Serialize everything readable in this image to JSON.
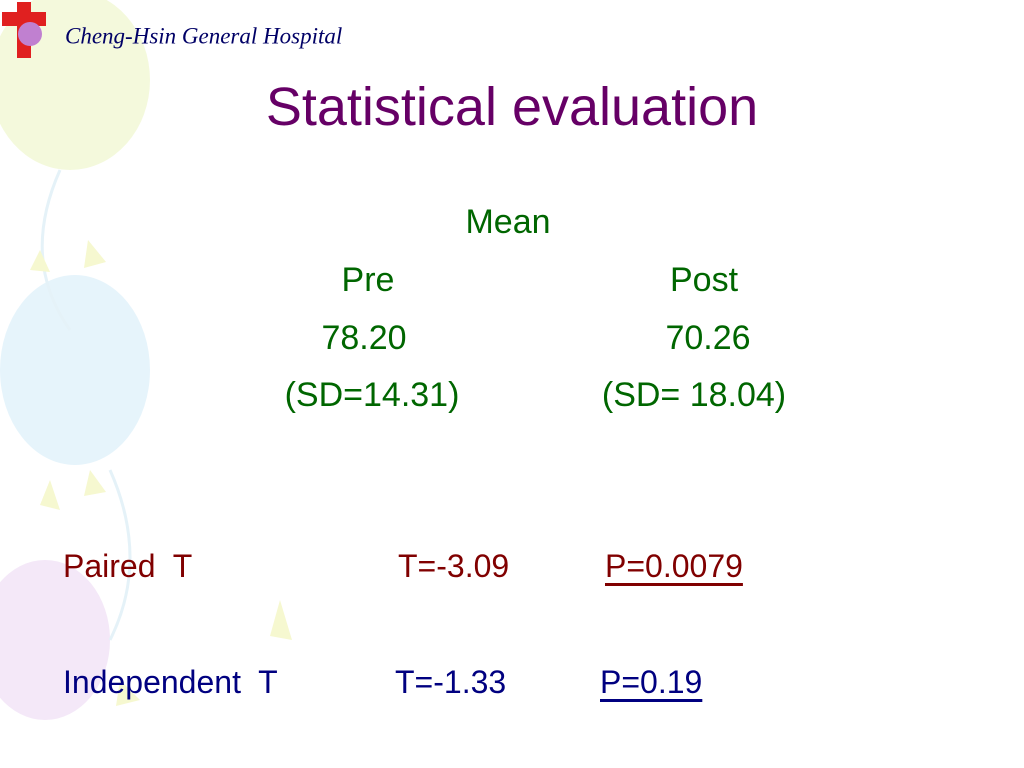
{
  "header": {
    "hospital": "Cheng-Hsin General Hospital"
  },
  "title": "Statistical evaluation",
  "summary": {
    "heading": "Mean",
    "columns": [
      {
        "label": "Pre",
        "mean": "78.20",
        "sd": "(SD=14.31)"
      },
      {
        "label": "Post",
        "mean": "70.26",
        "sd": "(SD= 18.04)"
      }
    ]
  },
  "tests": [
    {
      "name": "Paired  T",
      "t": "T=-3.09",
      "p": "P=0.0079"
    },
    {
      "name": "Independent  T",
      "t": "T=-1.33",
      "p": "P=0.19"
    }
  ]
}
